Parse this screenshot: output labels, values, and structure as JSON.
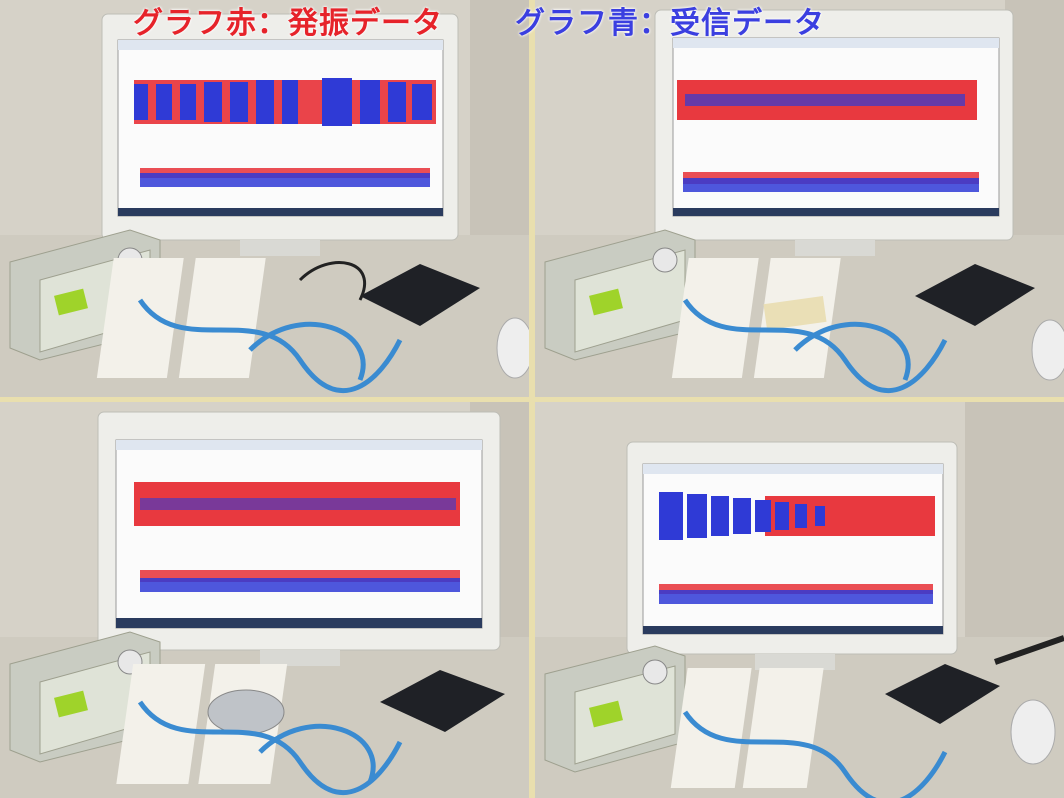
{
  "captions": {
    "red": "グラフ赤：発振データ",
    "blue": "グラフ青：受信データ"
  },
  "colors": {
    "red_trace": "#e6232a",
    "blue_trace": "#2f3ad6",
    "frame": "#e9dfae"
  },
  "panels": [
    {
      "id": "top-left",
      "dominant": "mixed"
    },
    {
      "id": "top-right",
      "dominant": "red"
    },
    {
      "id": "bottom-left",
      "dominant": "red"
    },
    {
      "id": "bottom-right",
      "dominant": "blue-then-red"
    }
  ]
}
